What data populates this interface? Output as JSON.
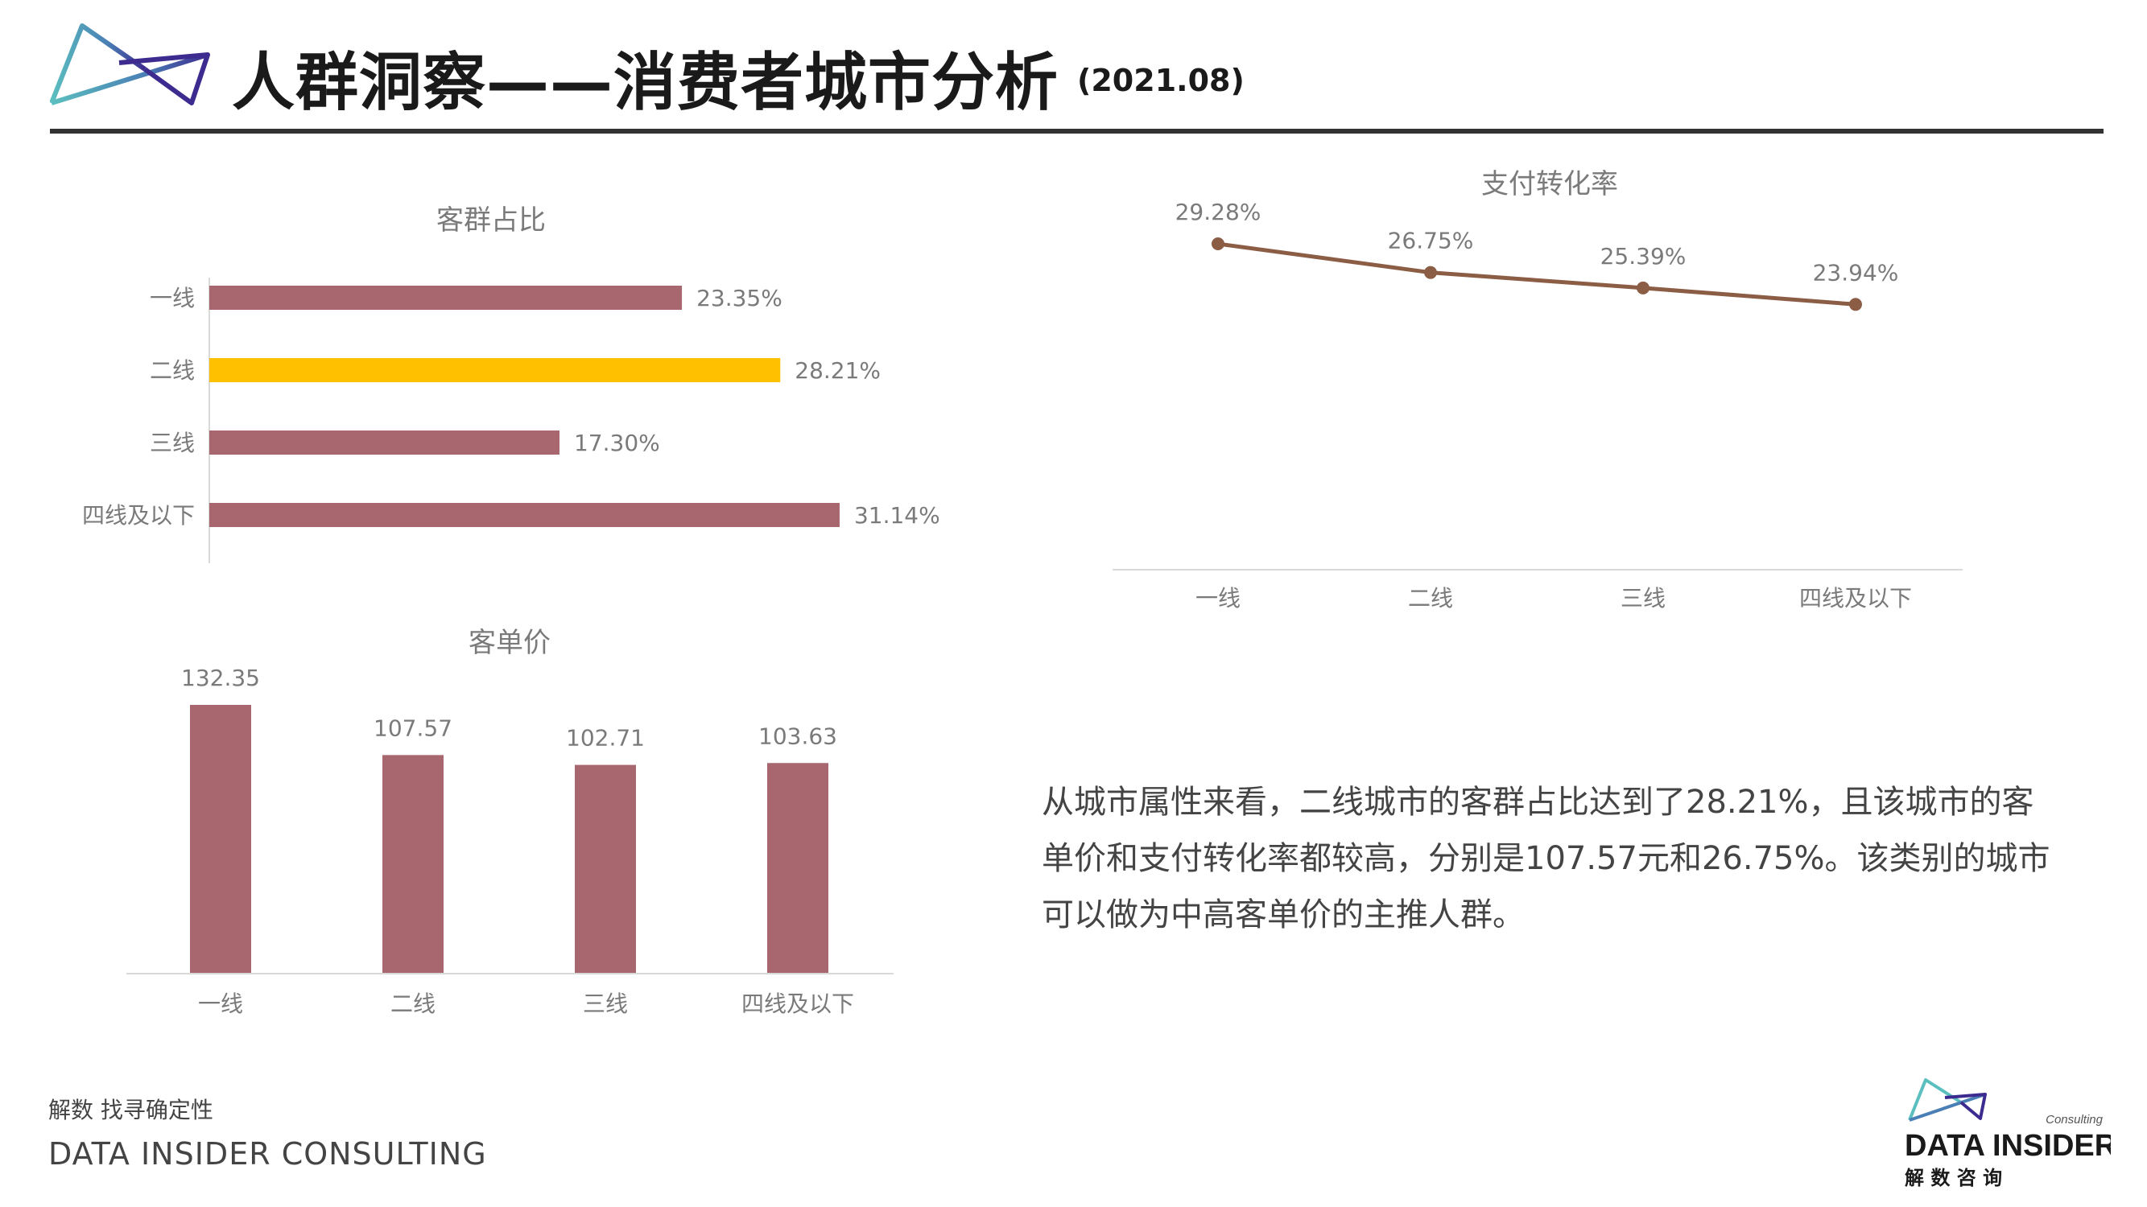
{
  "header": {
    "title": "人群洞察——消费者城市分析",
    "date": "(2021.08)"
  },
  "colors": {
    "bar": "#a8666e",
    "highlight": "#ffc000",
    "line": "#8c5d45",
    "logo_teal": "#5bbfbf",
    "logo_purple": "#3d2b8f"
  },
  "chart_data": [
    {
      "type": "bar",
      "orientation": "horizontal",
      "title": "客群占比",
      "categories": [
        "一线",
        "二线",
        "三线",
        "四线及以下"
      ],
      "values": [
        23.35,
        28.21,
        17.3,
        31.14
      ],
      "value_labels": [
        "23.35%",
        "28.21%",
        "17.30%",
        "31.14%"
      ],
      "highlight_index": 1,
      "xlim": [
        0,
        35
      ],
      "grid": false
    },
    {
      "type": "line",
      "title": "支付转化率",
      "categories": [
        "一线",
        "二线",
        "三线",
        "四线及以下"
      ],
      "values": [
        29.28,
        26.75,
        25.39,
        23.94
      ],
      "value_labels": [
        "29.28%",
        "26.75%",
        "25.39%",
        "23.94%"
      ],
      "ylim": [
        0,
        30
      ],
      "grid": false
    },
    {
      "type": "bar",
      "orientation": "vertical",
      "title": "客单价",
      "categories": [
        "一线",
        "二线",
        "三线",
        "四线及以下"
      ],
      "values": [
        132.35,
        107.57,
        102.71,
        103.63
      ],
      "value_labels": [
        "132.35",
        "107.57",
        "102.71",
        "103.63"
      ],
      "ylim": [
        0,
        140
      ],
      "grid": false
    }
  ],
  "summary": {
    "text": "从城市属性来看，二线城市的客群占比达到了28.21%，且该城市的客单价和支付转化率都较高，分别是107.57元和26.75%。该类别的城市可以做为中高客单价的主推人群。"
  },
  "footer": {
    "tagline": "解数 找寻确定性",
    "company": "DATA INSIDER CONSULTING"
  },
  "brand": {
    "consulting": "Consulting",
    "name": "DATA INSIDER",
    "cn_name": "解 数 咨 询"
  }
}
